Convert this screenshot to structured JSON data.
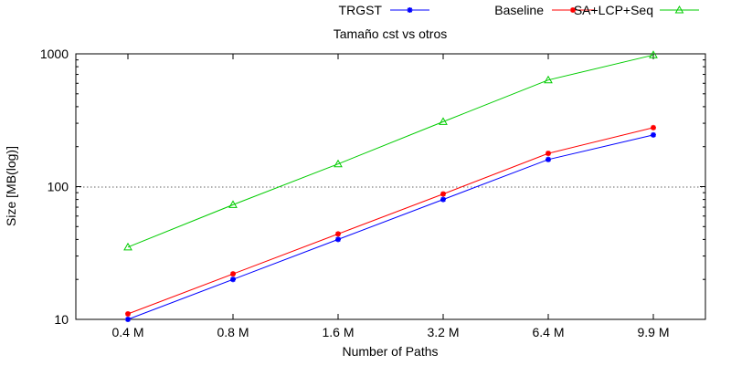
{
  "chart_data": {
    "type": "line",
    "title": "Tamaño cst vs otros",
    "xlabel": "Number of Paths",
    "ylabel": "Size [MB(log)]",
    "categories": [
      "0.4 M",
      "0.8 M",
      "1.6 M",
      "3.2 M",
      "6.4 M",
      "9.9 M"
    ],
    "y_scale": "log",
    "ylim": [
      10,
      1000
    ],
    "yticks": [
      10,
      100,
      1000
    ],
    "grid": "dotted horizontal line at 100",
    "legend_position": "top",
    "series": [
      {
        "name": "TRGST",
        "color": "#0000ff",
        "marker": "star",
        "values": [
          10,
          20,
          40,
          80,
          160,
          245
        ]
      },
      {
        "name": "Baseline",
        "color": "#ff0000",
        "marker": "star",
        "values": [
          11,
          22,
          44,
          88,
          178,
          278
        ]
      },
      {
        "name": "SA+LCP+Seq",
        "color": "#00cc00",
        "marker": "triangle",
        "values": [
          35,
          73,
          148,
          308,
          635,
          980
        ]
      }
    ]
  }
}
